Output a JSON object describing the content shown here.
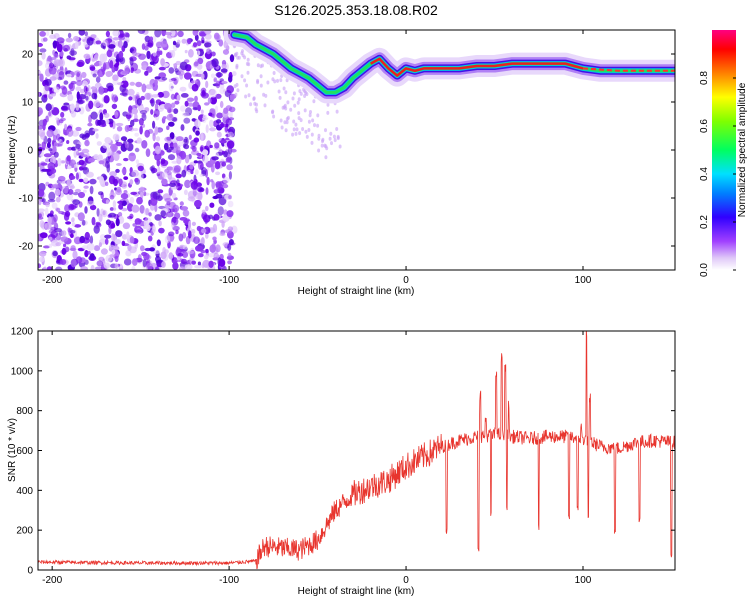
{
  "title": "S126.2025.353.18.08.R02",
  "chart_data": [
    {
      "type": "heatmap",
      "xlabel": "Height of straight line (km)",
      "ylabel": "Frequency (Hz)",
      "xlim": [
        -208,
        152
      ],
      "ylim": [
        -25,
        25
      ],
      "xticks": [
        -200,
        -100,
        0,
        100
      ],
      "yticks": [
        -20,
        -10,
        0,
        10,
        20
      ],
      "grid": false,
      "noise_region_x": [
        -208,
        -97
      ],
      "ridge": {
        "x": [
          -97,
          -90,
          -85,
          -80,
          -75,
          -70,
          -65,
          -60,
          -55,
          -50,
          -45,
          -40,
          -35,
          -30,
          -25,
          -20,
          -15,
          -10,
          -5,
          0,
          5,
          10,
          20,
          30,
          40,
          50,
          60,
          70,
          80,
          90,
          95,
          100,
          110,
          120,
          130,
          140,
          152
        ],
        "y": [
          24,
          23.5,
          22,
          21,
          20,
          18.5,
          17,
          16,
          15,
          13.5,
          12,
          12,
          13,
          15,
          16.5,
          18,
          19,
          17,
          15.5,
          17,
          16.5,
          17,
          17,
          17,
          17.5,
          17.5,
          18,
          18,
          18,
          18,
          17.5,
          17,
          16.5,
          16.5,
          16.5,
          16.5,
          16.5
        ]
      },
      "colorbar": {
        "label": "Normalized spectral amplitude",
        "ticks": [
          0.0,
          0.2,
          0.4,
          0.6,
          0.8
        ],
        "range": [
          0,
          1
        ],
        "tick_labels": [
          "0.0",
          "0.2",
          "0.4",
          "0.6",
          "0.8"
        ]
      }
    },
    {
      "type": "line",
      "xlabel": "Height of straight line (km)",
      "ylabel": "SNR (10 * v/v)",
      "xlim": [
        -208,
        152
      ],
      "ylim": [
        0,
        1200
      ],
      "xticks": [
        -200,
        -100,
        0,
        100
      ],
      "yticks": [
        0,
        200,
        400,
        600,
        800,
        1000,
        1200
      ],
      "grid": false,
      "color": "#e8352e",
      "baseline": {
        "x": [
          -208,
          -150,
          -100,
          -85,
          -80,
          -70,
          -60,
          -50,
          -40,
          -30,
          -20,
          -10,
          0,
          10,
          20,
          30,
          40,
          50,
          60,
          70,
          80,
          90,
          100,
          110,
          120,
          130,
          140,
          152
        ],
        "y": [
          40,
          35,
          35,
          45,
          120,
          110,
          100,
          150,
          300,
          380,
          420,
          450,
          520,
          570,
          620,
          650,
          670,
          680,
          670,
          660,
          670,
          670,
          660,
          620,
          610,
          640,
          650,
          640
        ]
      },
      "spikes": [
        {
          "x": 42,
          "y": 900
        },
        {
          "x": 45,
          "y": 780
        },
        {
          "x": 51,
          "y": 1000
        },
        {
          "x": 54,
          "y": 1100
        },
        {
          "x": 56,
          "y": 1050
        },
        {
          "x": 58,
          "y": 850
        },
        {
          "x": 99,
          "y": 750
        },
        {
          "x": 102,
          "y": 1230
        },
        {
          "x": 104,
          "y": 900
        }
      ],
      "dips": [
        {
          "x": 23,
          "y": 180
        },
        {
          "x": 41,
          "y": 80
        },
        {
          "x": 48,
          "y": 260
        },
        {
          "x": 57,
          "y": 300
        },
        {
          "x": 75,
          "y": 200
        },
        {
          "x": 92,
          "y": 250
        },
        {
          "x": 97,
          "y": 290
        },
        {
          "x": 103,
          "y": 240
        },
        {
          "x": 118,
          "y": 180
        },
        {
          "x": 132,
          "y": 240
        },
        {
          "x": 150,
          "y": 60
        }
      ]
    }
  ]
}
